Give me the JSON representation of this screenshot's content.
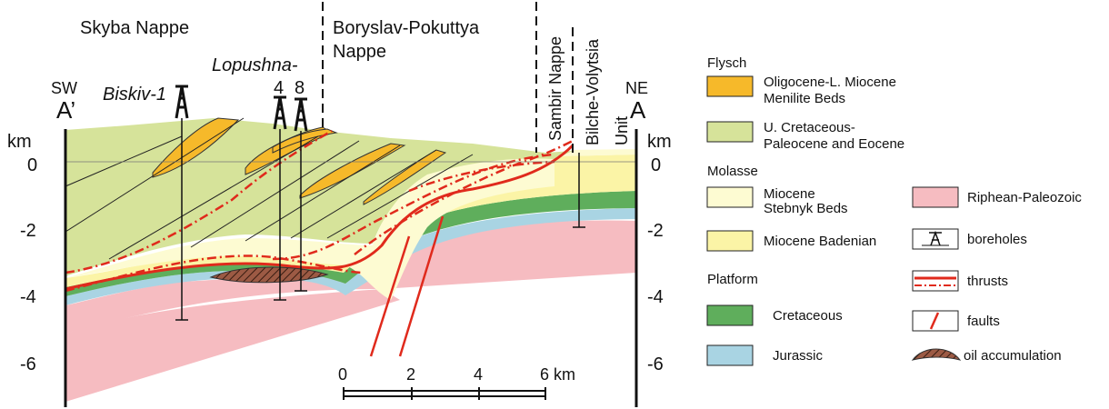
{
  "section": {
    "end_left": "A’",
    "end_right": "A",
    "dir_left": "SW",
    "dir_right": "NE",
    "units": "km",
    "depth_ticks": [
      "0",
      "-2",
      "-4",
      "-6"
    ]
  },
  "nappes": {
    "skyba": "Skyba Nappe",
    "boryslav_1": "Boryslav-Pokuttya",
    "boryslav_2": "Nappe",
    "sambir": "Sambir Nappe",
    "bilche_1": "Bilche-Volytsia",
    "bilche_2": "Unit"
  },
  "boreholes": {
    "biskiv": "Biskiv-1",
    "lopushna": "Lopushna-",
    "n4": "4",
    "n8": "8"
  },
  "scale_bar": {
    "ticks": [
      "0",
      "2",
      "4",
      "6 km"
    ]
  },
  "legend": {
    "flysch_heading": "Flysch",
    "menilite_1": "Oligocene-L. Miocene",
    "menilite_2": "Menilite Beds",
    "cretpal_1": "U. Cretaceous-",
    "cretpal_2": "Paleocene and Eocene",
    "molasse_heading": "Molasse",
    "stebnyk_1": "Miocene",
    "stebnyk_2": "Stebnyk Beds",
    "badenian": "Miocene Badenian",
    "platform_heading": "Platform",
    "cretaceous": "Cretaceous",
    "jurassic": "Jurassic",
    "riphean": "Riphean-Paleozoic",
    "boreholes": "boreholes",
    "thrusts": "thrusts",
    "faults": "faults",
    "oil": "oil accumulation"
  },
  "colors": {
    "flysch_green": "#d6e39a",
    "menilite_orange": "#f6b92a",
    "stebnyk": "#fdfbd2",
    "badenian": "#fbf4a6",
    "cretaceous": "#5fae5c",
    "jurassic": "#a9d4e3",
    "riphean": "#f6bcc1",
    "thrust_red": "#e02a1c",
    "oil_brown": "#9c5a44"
  }
}
